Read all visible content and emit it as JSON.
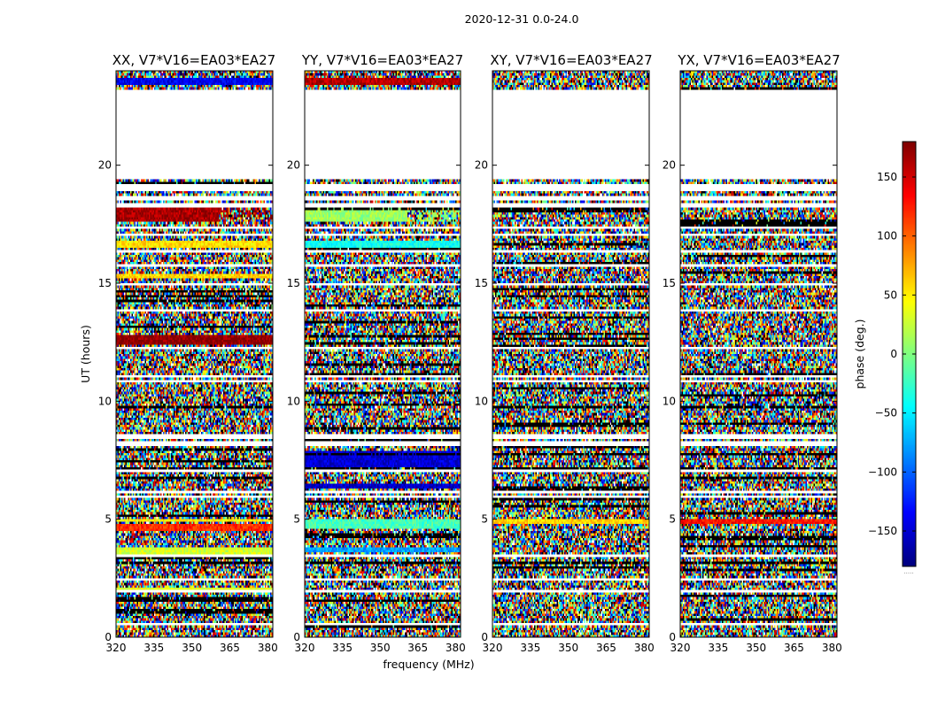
{
  "chart_data": {
    "type": "heatmap",
    "title": "2020-12-31 0.0-24.0",
    "xlabel": "frequency (MHz)",
    "ylabel": "UT (hours)",
    "xlim": [
      320,
      382
    ],
    "ylim": [
      0,
      24
    ],
    "xticks": [
      "320",
      "335",
      "350",
      "365",
      "380"
    ],
    "yticks": [
      "0",
      "5",
      "10",
      "15",
      "20"
    ],
    "colormap": "jet",
    "panels": [
      {
        "name": "XX",
        "title": "XX, V7*V16=EA03*EA27",
        "show_yticks": true,
        "coherent": [
          {
            "t0": 17.6,
            "t1": 18.2,
            "phase": 165,
            "fade": true
          },
          {
            "t0": 16.55,
            "t1": 16.8,
            "phase": 55
          },
          {
            "t0": 15.2,
            "t1": 15.45,
            "phase": 60
          },
          {
            "t0": 12.45,
            "t1": 12.75,
            "phase": 175
          },
          {
            "t0": 4.5,
            "t1": 4.8,
            "phase": 120
          },
          {
            "t0": 4.85,
            "t1": 5.05,
            "phase": 50
          },
          {
            "t0": 3.55,
            "t1": 3.75,
            "phase": 30
          },
          {
            "t0": 2.0,
            "t1": 2.15,
            "phase": 35
          },
          {
            "t0": 23.4,
            "t1": 23.7,
            "phase": -140
          }
        ]
      },
      {
        "name": "YY",
        "title": "YY, V7*V16=EA03*EA27",
        "show_yticks": true,
        "coherent": [
          {
            "t0": 17.6,
            "t1": 18.2,
            "phase": 10,
            "fade": true
          },
          {
            "t0": 16.55,
            "t1": 16.8,
            "phase": -40
          },
          {
            "t0": 7.2,
            "t1": 7.9,
            "phase": -150
          },
          {
            "t0": 6.3,
            "t1": 6.5,
            "phase": -155
          },
          {
            "t0": 4.6,
            "t1": 5.0,
            "phase": -20
          },
          {
            "t0": 3.6,
            "t1": 3.8,
            "phase": -80
          },
          {
            "t0": 23.4,
            "t1": 23.7,
            "phase": 160
          }
        ]
      },
      {
        "name": "XY",
        "title": "XY, V7*V16=EA03*EA27",
        "show_yticks": true,
        "coherent": [
          {
            "t0": 4.8,
            "t1": 5.0,
            "phase": 60
          }
        ]
      },
      {
        "name": "YX",
        "title": "YX, V7*V16=EA03*EA27",
        "show_yticks": true,
        "coherent": [
          {
            "t0": 4.8,
            "t1": 5.05,
            "phase": 130
          }
        ]
      }
    ],
    "data_gaps_hours": [
      [
        23.02,
        23.2
      ],
      [
        19.45,
        23.0
      ],
      [
        18.92,
        19.2
      ],
      [
        18.55,
        18.65
      ],
      [
        18.25,
        18.45
      ],
      [
        17.3,
        17.4
      ],
      [
        17.05,
        17.1
      ],
      [
        16.28,
        16.4
      ],
      [
        15.72,
        15.8
      ],
      [
        14.9,
        15.0
      ],
      [
        13.85,
        13.9
      ],
      [
        12.25,
        12.32
      ],
      [
        11.02,
        11.08
      ],
      [
        10.8,
        10.88
      ],
      [
        10.28,
        10.33
      ],
      [
        9.4,
        9.45
      ],
      [
        8.42,
        8.55
      ],
      [
        8.15,
        8.25
      ],
      [
        7.02,
        7.07
      ],
      [
        6.1,
        6.18
      ],
      [
        5.9,
        5.95
      ],
      [
        4.2,
        4.25
      ],
      [
        3.38,
        3.5
      ],
      [
        2.4,
        2.45
      ],
      [
        1.9,
        2.0
      ],
      [
        1.1,
        1.15
      ],
      [
        0.55,
        0.6
      ]
    ],
    "colorbar": {
      "label": "phase (deg.)",
      "range": [
        -180,
        180
      ],
      "ticks": [
        "150",
        "100",
        "50",
        "0",
        "−50",
        "−100",
        "−150"
      ],
      "tick_values": [
        150,
        100,
        50,
        0,
        -50,
        -100,
        -150
      ],
      "footer": "....."
    }
  }
}
